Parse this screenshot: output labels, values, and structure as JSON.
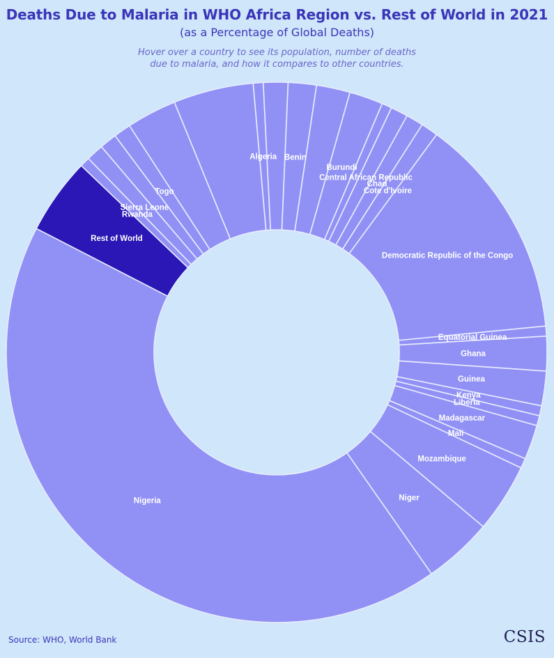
{
  "header": {
    "title": "Deaths Due to Malaria in WHO Africa Region vs. Rest of World in 2021",
    "subtitle": "(as a Percentage of Global Deaths)",
    "hint_line1": "Hover over a country to see its population, number of deaths",
    "hint_line2": "due to malaria, and how it compares to other countries."
  },
  "footer": {
    "source": "Source: WHO, World Bank",
    "logo": "CSIS"
  },
  "colors": {
    "background": "#cfe6fb",
    "slice": "#9191f5",
    "highlight": "#2a17b5",
    "border": "#e9ecff"
  },
  "chart_data": {
    "type": "pie",
    "variant": "donut",
    "slices": [
      {
        "label": "Algeria",
        "value": 0.55,
        "show_label": true
      },
      {
        "label": "",
        "value": 1.35,
        "show_label": false
      },
      {
        "label": "Benin",
        "value": 1.55,
        "show_label": true
      },
      {
        "label": "",
        "value": 1.85,
        "show_label": false
      },
      {
        "label": "Burundi",
        "value": 1.85,
        "show_label": true
      },
      {
        "label": "",
        "value": 0.55,
        "show_label": false
      },
      {
        "label": "Central African Republic",
        "value": 0.95,
        "show_label": true
      },
      {
        "label": "Chad",
        "value": 0.95,
        "show_label": true
      },
      {
        "label": "Cote d'Ivoire",
        "value": 0.95,
        "show_label": true
      },
      {
        "label": "Democratic Republic of the Congo",
        "value": 12.3,
        "show_label": true
      },
      {
        "label": "Equatorial Guinea",
        "value": 0.55,
        "show_label": true
      },
      {
        "label": "Ghana",
        "value": 1.9,
        "show_label": true
      },
      {
        "label": "Guinea",
        "value": 1.9,
        "show_label": true
      },
      {
        "label": "Kenya",
        "value": 0.55,
        "show_label": true
      },
      {
        "label": "Liberia",
        "value": 0.55,
        "show_label": true
      },
      {
        "label": "Madagascar",
        "value": 1.9,
        "show_label": true
      },
      {
        "label": "Mali",
        "value": 0.55,
        "show_label": true
      },
      {
        "label": "Mozambique",
        "value": 3.8,
        "show_label": true
      },
      {
        "label": "Niger",
        "value": 3.8,
        "show_label": true
      },
      {
        "label": "Nigeria",
        "value": 38.9,
        "show_label": true
      },
      {
        "label": "Rest of World",
        "value": 4.2,
        "show_label": true,
        "highlight": true
      },
      {
        "label": "Rwanda",
        "value": 0.55,
        "show_label": true
      },
      {
        "label": "Sierra Leone",
        "value": 0.95,
        "show_label": true
      },
      {
        "label": "",
        "value": 0.95,
        "show_label": false
      },
      {
        "label": "Togo",
        "value": 0.95,
        "show_label": true
      },
      {
        "label": "",
        "value": 2.75,
        "show_label": false
      },
      {
        "label": "",
        "value": 4.4,
        "show_label": false
      }
    ]
  }
}
